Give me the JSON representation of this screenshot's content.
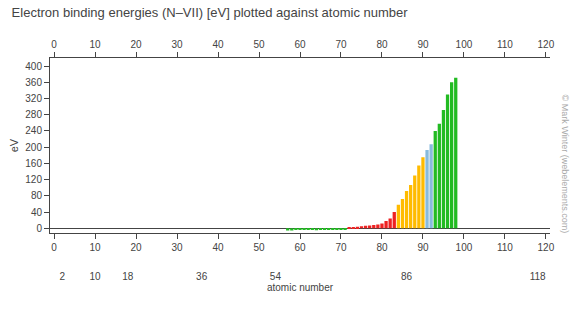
{
  "chart_data": {
    "type": "bar",
    "title": "Electron binding energies (N–VII) [eV] plotted against atomic number",
    "ylabel": "eV",
    "xlabel": "atomic number",
    "x": [
      57,
      58,
      59,
      60,
      61,
      62,
      63,
      64,
      65,
      66,
      67,
      68,
      69,
      70,
      71,
      72,
      73,
      74,
      75,
      76,
      77,
      78,
      79,
      80,
      81,
      82,
      83,
      84,
      85,
      86,
      87,
      88,
      89,
      90,
      91,
      92,
      93,
      94,
      95,
      96,
      97,
      98
    ],
    "values": [
      -5.8,
      -5.8,
      -2.0,
      -3.0,
      -3.0,
      -3.0,
      -4.0,
      -5.0,
      -4.0,
      -4.0,
      -4.0,
      -4.0,
      -4.0,
      -2.0,
      -2.0,
      2.0,
      3.0,
      4.0,
      5.0,
      6.0,
      7.0,
      8.0,
      9.0,
      12.0,
      18.0,
      24.0,
      40.0,
      58.0,
      72.0,
      92.0,
      107.0,
      130.0,
      155.0,
      175.0,
      193.0,
      207.0,
      240.0,
      258.0,
      292.0,
      330.0,
      360.0,
      371.0
    ],
    "colors": [
      "#22BB22",
      "#22BB22",
      "#22BB22",
      "#22BB22",
      "#22BB22",
      "#22BB22",
      "#22BB22",
      "#22BB22",
      "#22BB22",
      "#22BB22",
      "#22BB22",
      "#22BB22",
      "#22BB22",
      "#22BB22",
      "#22BB22",
      "#EE2222",
      "#EE2222",
      "#EE2222",
      "#EE2222",
      "#EE2222",
      "#EE2222",
      "#EE2222",
      "#EE2222",
      "#EE2222",
      "#EE2222",
      "#EE2222",
      "#EE2222",
      "#FFBB00",
      "#FFBB00",
      "#FFBB00",
      "#FFBB00",
      "#FFBB00",
      "#FFBB00",
      "#FFBB00",
      "#88BBDD",
      "#88BBDD",
      "#22BB22",
      "#22BB22",
      "#22BB22",
      "#22BB22",
      "#22BB22",
      "#22BB22"
    ],
    "xlim": [
      -1,
      121
    ],
    "xticks": [
      0,
      10,
      20,
      30,
      40,
      50,
      60,
      70,
      80,
      90,
      100,
      110,
      120
    ],
    "x2ticks": [
      2,
      10,
      18,
      36,
      54,
      86,
      118
    ],
    "ylim": [
      -12,
      420
    ],
    "yticks": [
      0,
      40,
      80,
      120,
      160,
      200,
      240,
      280,
      320,
      360,
      400
    ],
    "grid": false,
    "annotations": [
      "© Mark Winter (webelements.com)"
    ]
  }
}
